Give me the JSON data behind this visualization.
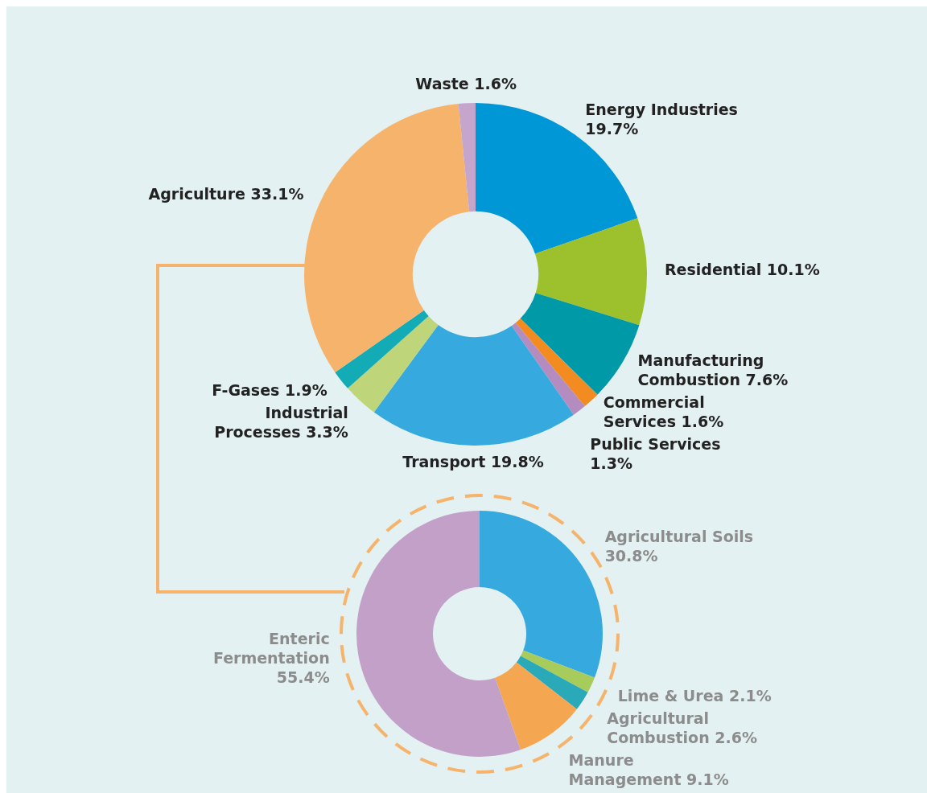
{
  "chart_data": [
    {
      "type": "donut",
      "categories": [
        "Energy Industries",
        "Residential",
        "Manufacturing Combustion",
        "Commercial Services",
        "Public Services",
        "Transport",
        "Industrial Processes",
        "F-Gases",
        "Agriculture",
        "Waste"
      ],
      "values": [
        19.7,
        10.1,
        7.6,
        1.6,
        1.3,
        19.8,
        3.3,
        1.9,
        33.1,
        1.6
      ],
      "colors": [
        "#0097d7",
        "#9dc12d",
        "#0099a8",
        "#f28c21",
        "#b58cc0",
        "#36aade",
        "#bfd57a",
        "#13acb6",
        "#f6b36b",
        "#c6a5cd"
      ],
      "value_labels": [
        "19.7%",
        "10.1%",
        "7.6%",
        "1.6%",
        "1.3%",
        "19.8%",
        "3.3%",
        "1.9%",
        "33.1%",
        "1.6%"
      ]
    },
    {
      "type": "donut",
      "categories": [
        "Agricultural Soils",
        "Lime & Urea",
        "Agricultural Combustion",
        "Manure Management",
        "Enteric Fermentation"
      ],
      "values": [
        30.8,
        2.1,
        2.6,
        9.1,
        55.4
      ],
      "colors": [
        "#36aade",
        "#a7cc5b",
        "#2aa9b8",
        "#f4a750",
        "#c3a0c8"
      ],
      "value_labels": [
        "30.8%",
        "2.1%",
        "2.6%",
        "9.1%",
        "55.4%"
      ]
    }
  ]
}
